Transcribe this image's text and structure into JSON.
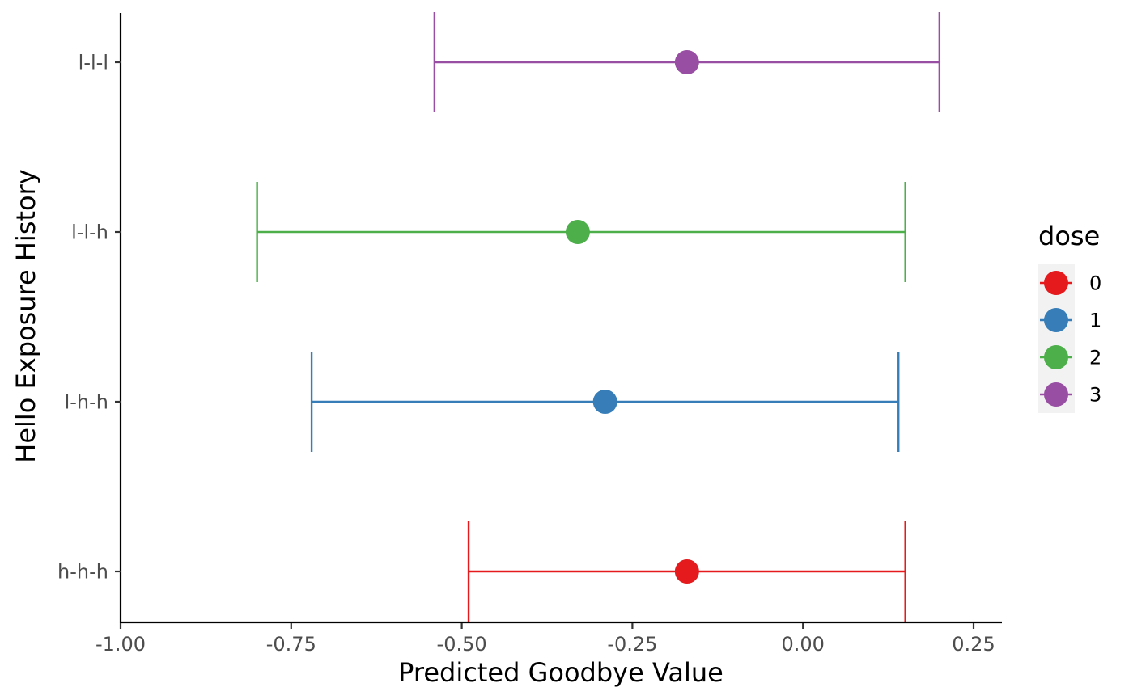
{
  "chart_data": {
    "type": "errorbar-point",
    "xlabel": "Predicted Goodbye Value",
    "ylabel": "Hello Exposure History",
    "xlim": [
      -1.0,
      0.28
    ],
    "x_ticks": [
      -1.0,
      -0.75,
      -0.5,
      -0.25,
      0.0,
      0.25
    ],
    "x_tick_labels": [
      "-1.00",
      "-0.75",
      "-0.50",
      "-0.25",
      "0.00",
      "0.25"
    ],
    "categories": [
      "h-h-h",
      "l-h-h",
      "l-l-h",
      "l-l-l"
    ],
    "grid": false,
    "legend": {
      "title": "dose",
      "placement": "right",
      "entries": [
        {
          "label": "0",
          "color": "#E41A1C"
        },
        {
          "label": "1",
          "color": "#377EB8"
        },
        {
          "label": "2",
          "color": "#4DAF4A"
        },
        {
          "label": "3",
          "color": "#984EA3"
        }
      ]
    },
    "series": [
      {
        "category": "h-h-h",
        "dose": "0",
        "estimate": -0.17,
        "lower": -0.49,
        "upper": 0.15,
        "color": "#E41A1C"
      },
      {
        "category": "l-h-h",
        "dose": "1",
        "estimate": -0.29,
        "lower": -0.72,
        "upper": 0.14,
        "color": "#377EB8"
      },
      {
        "category": "l-l-h",
        "dose": "2",
        "estimate": -0.33,
        "lower": -0.8,
        "upper": 0.15,
        "color": "#4DAF4A"
      },
      {
        "category": "l-l-l",
        "dose": "3",
        "estimate": -0.17,
        "lower": -0.54,
        "upper": 0.2,
        "color": "#984EA3"
      }
    ]
  }
}
